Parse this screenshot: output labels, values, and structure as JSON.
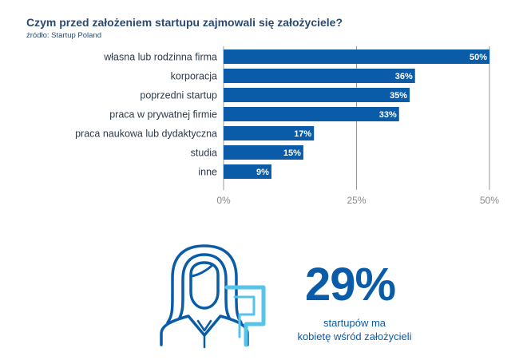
{
  "header": {
    "title": "Czym przed założeniem startupu zajmowali się założyciele?",
    "source": "źródło: Startup Poland"
  },
  "colors": {
    "bar": "#0a5ca8",
    "grid": "#9a9a9a",
    "accent": "#0a5ca8",
    "accent_light": "#54c4e8"
  },
  "chart_data": {
    "type": "bar",
    "orientation": "horizontal",
    "title": "Czym przed założeniem startupu zajmowali się założyciele?",
    "categories": [
      "własna lub rodzinna firma",
      "korporacja",
      "poprzedni startup",
      "praca w prywatnej firmie",
      "praca naukowa lub dydaktyczna",
      "studia",
      "inne"
    ],
    "values": [
      50,
      36,
      35,
      33,
      17,
      15,
      9
    ],
    "value_labels": [
      "50%",
      "36%",
      "35%",
      "33%",
      "17%",
      "15%",
      "9%"
    ],
    "xlim": [
      0,
      50
    ],
    "xticks": [
      0,
      25,
      50
    ],
    "xtick_labels": [
      "0%",
      "25%",
      "50%"
    ],
    "xlabel": "",
    "ylabel": "",
    "grid": true
  },
  "stat": {
    "value": "29%",
    "caption_line1": "startupów ma",
    "caption_line2": "kobietę wśród założycieli",
    "icon": "woman-founder-icon"
  }
}
